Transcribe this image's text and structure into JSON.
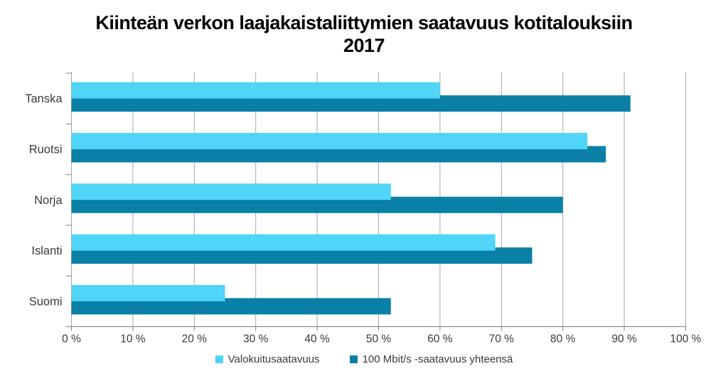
{
  "chart_data": {
    "type": "bar",
    "orientation": "horizontal",
    "title": "Kiinteän verkon laajakaistaliittymien saatavuus kotitalouksiin 2017",
    "categories": [
      "Tanska",
      "Ruotsi",
      "Norja",
      "Islanti",
      "Suomi"
    ],
    "series": [
      {
        "name": "Valokuitusaatavuus",
        "color": "#50d4f7",
        "values": [
          60,
          84,
          52,
          69,
          25
        ]
      },
      {
        "name": "100 Mbit/s -saatavuus yhteensä",
        "color": "#0b80a6",
        "values": [
          91,
          87,
          80,
          75,
          52
        ]
      }
    ],
    "x_axis": {
      "min": 0,
      "max": 100,
      "step": 10,
      "tick_labels": [
        "0 %",
        "10 %",
        "20 %",
        "30 %",
        "40 %",
        "50 %",
        "60 %",
        "70 %",
        "80 %",
        "90 %",
        "100 %"
      ]
    },
    "grid": "vertical-only",
    "legend_position": "bottom",
    "colors": {
      "grid_line": "#a6a6a6",
      "axis_line": "#808080",
      "label_text": "#3a3a3a",
      "title_text": "#000000",
      "background": "#ffffff"
    }
  }
}
